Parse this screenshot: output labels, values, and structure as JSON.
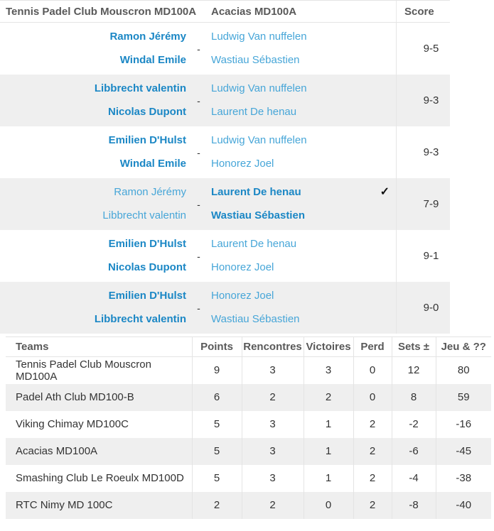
{
  "colors": {
    "winner_blue": "#1b87c5",
    "player_blue": "#47a6d8",
    "header_text": "#595959",
    "value_text": "#333333",
    "row_alt_bg": "#efefef",
    "border": "#e4e4e4"
  },
  "match_table": {
    "headers": {
      "home_team": "Tennis Padel Club Mouscron MD100A",
      "away_team": "Acacias MD100A",
      "score": "Score"
    },
    "separator": "-",
    "checkmark": "✓",
    "rows": [
      {
        "home": [
          "Ramon Jérémy",
          "Windal Emile"
        ],
        "away": [
          "Ludwig Van nuffelen",
          "Wastiau Sébastien"
        ],
        "winner": "home",
        "score": "9-5"
      },
      {
        "home": [
          "Libbrecht valentin",
          "Nicolas Dupont"
        ],
        "away": [
          "Ludwig Van nuffelen",
          "Laurent De henau"
        ],
        "winner": "home",
        "score": "9-3"
      },
      {
        "home": [
          "Emilien D'Hulst",
          "Windal Emile"
        ],
        "away": [
          "Ludwig Van nuffelen",
          "Honorez Joel"
        ],
        "winner": "home",
        "score": "9-3"
      },
      {
        "home": [
          "Ramon Jérémy",
          "Libbrecht valentin"
        ],
        "away": [
          "Laurent De henau",
          "Wastiau Sébastien"
        ],
        "winner": "away",
        "checked": true,
        "score": "7-9"
      },
      {
        "home": [
          "Emilien D'Hulst",
          "Nicolas Dupont"
        ],
        "away": [
          "Laurent De henau",
          "Honorez Joel"
        ],
        "winner": "home",
        "score": "9-1"
      },
      {
        "home": [
          "Emilien D'Hulst",
          "Libbrecht valentin"
        ],
        "away": [
          "Honorez Joel",
          "Wastiau Sébastien"
        ],
        "winner": "home",
        "score": "9-0"
      }
    ]
  },
  "standings_table": {
    "headers": [
      "Teams",
      "Points",
      "Rencontres",
      "Victoires",
      "Perd",
      "Sets ±",
      "Jeu & ??"
    ],
    "rows": [
      {
        "team": "Tennis Padel Club Mouscron MD100A",
        "points": "9",
        "rencontres": "3",
        "victoires": "3",
        "perd": "0",
        "sets": "12",
        "jeu": "80"
      },
      {
        "team": "Padel Ath Club MD100-B",
        "points": "6",
        "rencontres": "2",
        "victoires": "2",
        "perd": "0",
        "sets": "8",
        "jeu": "59"
      },
      {
        "team": "Viking Chimay MD100C",
        "points": "5",
        "rencontres": "3",
        "victoires": "1",
        "perd": "2",
        "sets": "-2",
        "jeu": "-16"
      },
      {
        "team": "Acacias MD100A",
        "points": "5",
        "rencontres": "3",
        "victoires": "1",
        "perd": "2",
        "sets": "-6",
        "jeu": "-45"
      },
      {
        "team": "Smashing Club Le Roeulx MD100D",
        "points": "5",
        "rencontres": "3",
        "victoires": "1",
        "perd": "2",
        "sets": "-4",
        "jeu": "-38"
      },
      {
        "team": "RTC Nimy MD 100C",
        "points": "2",
        "rencontres": "2",
        "victoires": "0",
        "perd": "2",
        "sets": "-8",
        "jeu": "-40"
      }
    ]
  }
}
